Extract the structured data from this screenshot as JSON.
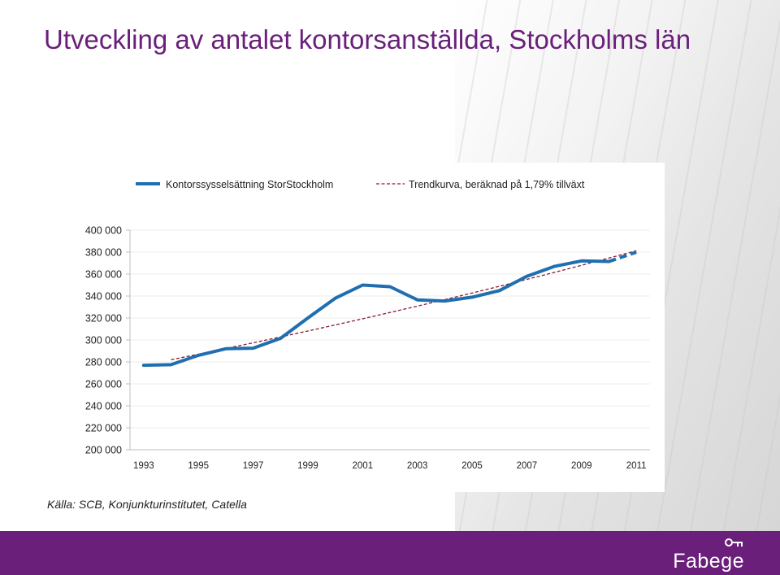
{
  "slide": {
    "title": "Utveckling av antalet kontorsanställda, Stockholms län",
    "source": "Källa: SCB, Konjunkturinstitutet, Catella",
    "logo_text": "Fabege",
    "logo_icon": "key-icon"
  },
  "colors": {
    "accent": "#6a1f7a",
    "series_main": "#1f6fb0",
    "trend": "#8b1a2e",
    "axis": "#bfbfbf"
  },
  "chart_data": {
    "type": "line",
    "title": "",
    "xlabel": "",
    "ylabel": "",
    "ylim": [
      200000,
      400000
    ],
    "ytick_values": [
      200000,
      220000,
      240000,
      260000,
      280000,
      300000,
      320000,
      340000,
      360000,
      380000,
      400000
    ],
    "ytick_labels": [
      "200 000",
      "220 000",
      "240 000",
      "260 000",
      "280 000",
      "300 000",
      "320 000",
      "340 000",
      "360 000",
      "380 000",
      "400 000"
    ],
    "xtick_labels": [
      "1993",
      "1995",
      "1997",
      "1999",
      "2001",
      "2003",
      "2005",
      "2007",
      "2009",
      "2011"
    ],
    "x": [
      1993,
      1994,
      1995,
      1996,
      1997,
      1998,
      1999,
      2000,
      2001,
      2002,
      2003,
      2004,
      2005,
      2006,
      2007,
      2008,
      2009,
      2010,
      2011
    ],
    "legend_position": "top",
    "series": [
      {
        "name": "Kontorssysselsättning StorStockholm",
        "style": "solid",
        "values": [
          277000,
          277500,
          286000,
          292000,
          292500,
          301500,
          320000,
          338000,
          350000,
          348500,
          336500,
          335500,
          339000,
          345000,
          358000,
          367000,
          372000,
          371500,
          380000
        ],
        "forecast_from": 2010
      },
      {
        "name": "Trendkurva, beräknad på 1,79% tillväxt",
        "style": "dashed",
        "x_start": 1994,
        "x_end": 2011,
        "start": 282000,
        "growth_rate": 0.0179
      }
    ]
  }
}
